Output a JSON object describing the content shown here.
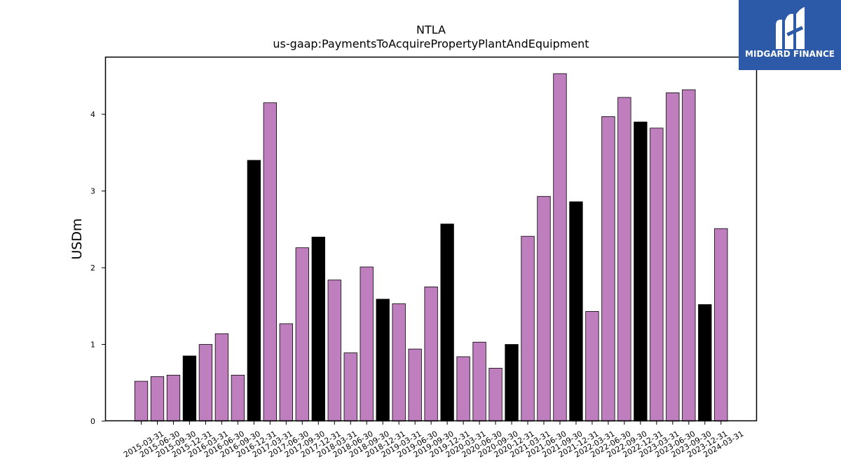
{
  "chart_data": {
    "type": "bar",
    "title": "NTLA",
    "subtitle": "us-gaap:PaymentsToAcquirePropertyPlantAndEquipment",
    "xlabel": "",
    "ylabel": "USDm",
    "ylim": [
      0,
      4.75
    ],
    "yticks": [
      "0",
      "1",
      "2",
      "3",
      "4"
    ],
    "grid": false,
    "categories": [
      "2015-03-31",
      "2015-06-30",
      "2015-09-30",
      "2015-12-31",
      "2016-03-31",
      "2016-06-30",
      "2016-09-30",
      "2016-12-31",
      "2017-03-31",
      "2017-06-30",
      "2017-09-30",
      "2017-12-31",
      "2018-03-31",
      "2018-06-30",
      "2018-09-30",
      "2018-12-31",
      "2019-03-31",
      "2019-06-30",
      "2019-09-30",
      "2019-12-31",
      "2020-03-31",
      "2020-06-30",
      "2020-09-30",
      "2020-12-31",
      "2021-03-31",
      "2021-06-30",
      "2021-09-30",
      "2021-12-31",
      "2022-03-31",
      "2022-06-30",
      "2022-09-30",
      "2022-12-31",
      "2023-03-31",
      "2023-06-30",
      "2023-09-30",
      "2023-12-31",
      "2024-03-31"
    ],
    "values": [
      0.52,
      0.58,
      0.6,
      0.85,
      1.0,
      1.14,
      0.6,
      3.4,
      4.15,
      1.27,
      2.26,
      2.4,
      1.84,
      0.89,
      2.01,
      1.59,
      1.53,
      0.94,
      1.75,
      2.57,
      0.84,
      1.03,
      0.69,
      1.0,
      2.41,
      2.93,
      4.53,
      2.86,
      1.43,
      3.97,
      4.22,
      3.9,
      3.82,
      4.28,
      4.32,
      1.52,
      2.51
    ],
    "bar_colors": [
      "#bf7fbf",
      "#bf7fbf",
      "#bf7fbf",
      "#000000",
      "#bf7fbf",
      "#bf7fbf",
      "#bf7fbf",
      "#000000",
      "#bf7fbf",
      "#bf7fbf",
      "#bf7fbf",
      "#000000",
      "#bf7fbf",
      "#bf7fbf",
      "#bf7fbf",
      "#000000",
      "#bf7fbf",
      "#bf7fbf",
      "#bf7fbf",
      "#000000",
      "#bf7fbf",
      "#bf7fbf",
      "#bf7fbf",
      "#000000",
      "#bf7fbf",
      "#bf7fbf",
      "#bf7fbf",
      "#000000",
      "#bf7fbf",
      "#bf7fbf",
      "#bf7fbf",
      "#000000",
      "#bf7fbf",
      "#bf7fbf",
      "#bf7fbf",
      "#000000",
      "#bf7fbf"
    ]
  },
  "logo": {
    "text": "MIDGARD FINANCE",
    "background": "#2d5aa8",
    "icon": "midgard-m-logo-icon"
  }
}
